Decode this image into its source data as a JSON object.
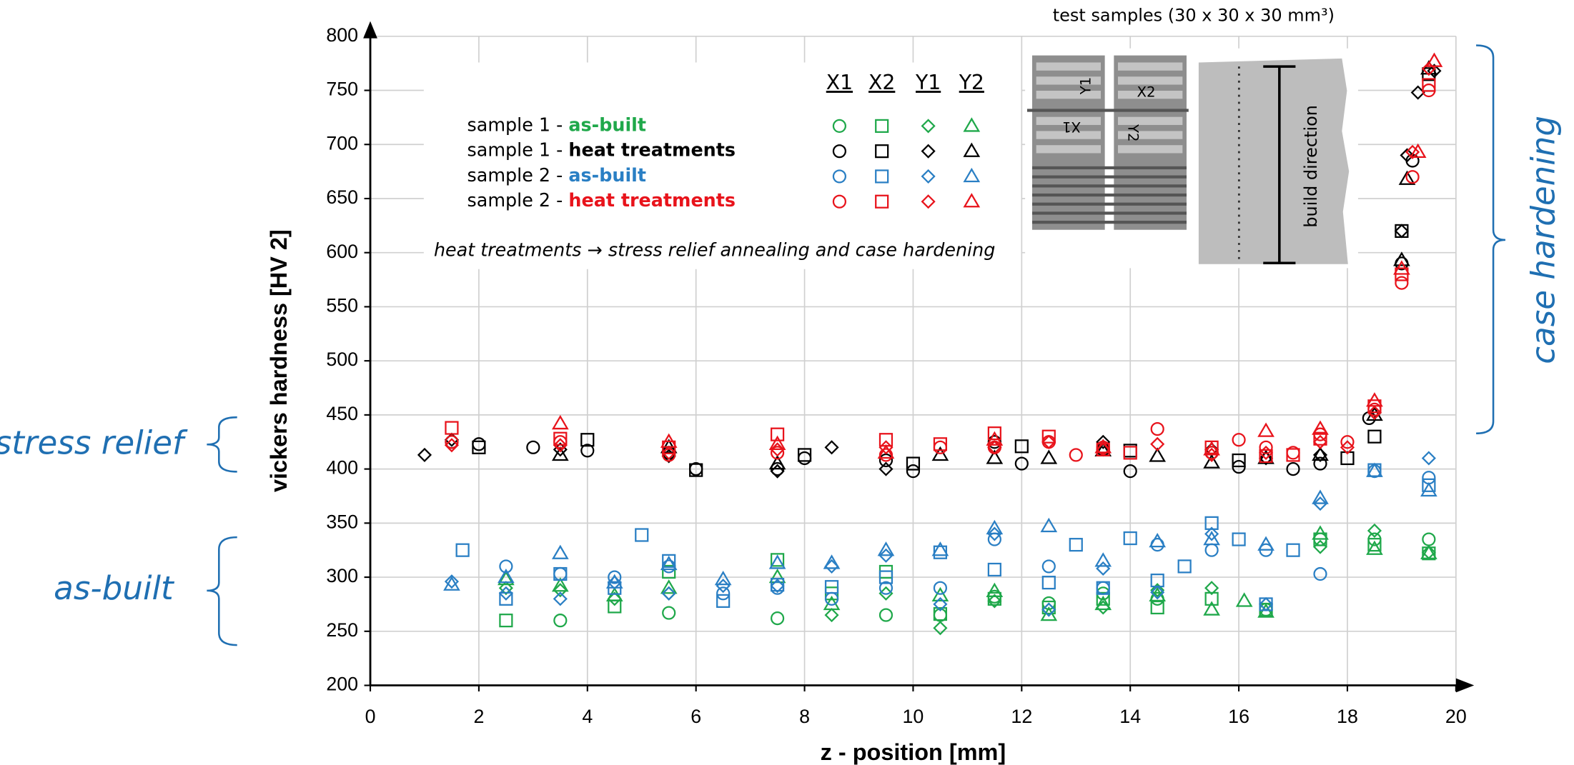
{
  "chart_data": {
    "type": "scatter",
    "x_label": "z - position [mm]",
    "y_label": "vickers hardness [HV 2]",
    "xlim": [
      0,
      20
    ],
    "xticks": [
      0,
      2,
      4,
      6,
      8,
      10,
      12,
      14,
      16,
      18,
      20
    ],
    "ylim": [
      200,
      800
    ],
    "yticks": [
      200,
      250,
      300,
      350,
      400,
      450,
      500,
      550,
      600,
      650,
      700,
      750,
      800
    ],
    "grid": true,
    "annotation": "heat treatments  → stress relief annealing and case hardening",
    "brace_labels": [
      "stress relief",
      "as-built",
      "case hardening"
    ],
    "inset": {
      "title": "test samples (30 x 30 x 30 mm³)",
      "build_direction": "build direction",
      "labels": [
        "Y1",
        "X2",
        "X1",
        "Y2"
      ]
    },
    "legend": {
      "columns": [
        {
          "label": "X1",
          "marker": "circle"
        },
        {
          "label": "X2",
          "marker": "square"
        },
        {
          "label": "Y1",
          "marker": "diamond"
        },
        {
          "label": "Y2",
          "marker": "triangle"
        }
      ],
      "rows": [
        {
          "prefix": "sample 1 - ",
          "label": "as-built",
          "color": "#1fa84a"
        },
        {
          "prefix": "sample 1 - ",
          "label": "heat treatments",
          "color": "#000000"
        },
        {
          "prefix": "sample 2 - ",
          "label": "as-built",
          "color": "#2a7fc4"
        },
        {
          "prefix": "sample 2 - ",
          "label": "heat treatments",
          "color": "#e8131b"
        }
      ]
    },
    "series": [
      {
        "color": "#1fa84a",
        "marker": "circle",
        "x": [
          3.5,
          5.5,
          7.5,
          9.5,
          10.5,
          11.5,
          12.5,
          13.5,
          14.5,
          16.5,
          17.5,
          18.5,
          19.5
        ],
        "values": [
          260,
          267,
          262,
          265,
          265,
          282,
          276,
          285,
          280,
          270,
          335,
          335,
          335
        ]
      },
      {
        "color": "#1fa84a",
        "marker": "square",
        "x": [
          2.5,
          4.5,
          5.5,
          7.5,
          8.5,
          9.5,
          10.5,
          11.5,
          12.5,
          13.5,
          14.5,
          15.5,
          16.5,
          17.5,
          18.5,
          19.5
        ],
        "values": [
          260,
          273,
          305,
          316,
          285,
          305,
          266,
          280,
          272,
          280,
          272,
          280,
          270,
          335,
          330,
          322
        ]
      },
      {
        "color": "#1fa84a",
        "marker": "diamond",
        "x": [
          2.5,
          3.5,
          4.5,
          5.5,
          8.5,
          9.5,
          10.5,
          11.5,
          12.5,
          13.5,
          14.5,
          15.5,
          17.5,
          18.5,
          19.5
        ],
        "values": [
          290,
          288,
          280,
          285,
          265,
          285,
          253,
          278,
          270,
          272,
          288,
          290,
          328,
          343,
          323
        ]
      },
      {
        "color": "#1fa84a",
        "marker": "triangle",
        "x": [
          2.5,
          3.5,
          4.5,
          5.5,
          7.5,
          8.5,
          10.5,
          11.5,
          12.5,
          13.5,
          14.5,
          15.5,
          16.1,
          16.5,
          17.5,
          18.5,
          19.5
        ],
        "values": [
          298,
          292,
          283,
          290,
          300,
          275,
          283,
          287,
          265,
          275,
          283,
          270,
          278,
          268,
          340,
          326,
          322
        ]
      },
      {
        "color": "#000000",
        "marker": "circle",
        "x": [
          1.5,
          2,
          3,
          4,
          5.5,
          6,
          7.5,
          8,
          9.5,
          10,
          11.5,
          12,
          13.5,
          14,
          15.5,
          16,
          17,
          17.5,
          18.4,
          19,
          19.2
        ],
        "values": [
          425,
          423,
          420,
          417,
          415,
          400,
          400,
          410,
          408,
          398,
          425,
          405,
          418,
          398,
          415,
          402,
          400,
          405,
          447,
          590,
          685
        ]
      },
      {
        "color": "#000000",
        "marker": "square",
        "x": [
          2,
          4,
          6,
          8,
          10,
          12,
          14,
          16,
          18,
          18.5,
          19,
          19.5
        ],
        "values": [
          420,
          427,
          399,
          413,
          405,
          421,
          417,
          408,
          410,
          430,
          620,
          765
        ]
      },
      {
        "color": "#000000",
        "marker": "diamond",
        "x": [
          1,
          1.5,
          3.5,
          5.5,
          7.5,
          8.5,
          9.5,
          11.5,
          13.5,
          15.5,
          16.5,
          17.5,
          18.5,
          19,
          19.1,
          19.3,
          19.6
        ],
        "values": [
          413,
          427,
          418,
          412,
          398,
          420,
          400,
          420,
          425,
          418,
          410,
          413,
          452,
          620,
          690,
          748,
          768
        ]
      },
      {
        "color": "#000000",
        "marker": "triangle",
        "x": [
          3.5,
          5.5,
          7.5,
          10.5,
          11.5,
          12.5,
          13.5,
          14.5,
          15.5,
          16.5,
          17.5,
          18.5,
          19,
          19.1,
          19.5
        ],
        "values": [
          413,
          420,
          405,
          413,
          410,
          410,
          417,
          412,
          406,
          410,
          413,
          450,
          593,
          668,
          770
        ]
      },
      {
        "color": "#2a7fc4",
        "marker": "circle",
        "x": [
          2.5,
          3.5,
          4.5,
          5.5,
          6.5,
          7.5,
          8.5,
          9.5,
          10.5,
          11.5,
          12.5,
          13.5,
          14.5,
          15.5,
          16.5,
          17.5,
          18.5,
          19.5
        ],
        "values": [
          310,
          303,
          300,
          310,
          285,
          290,
          280,
          290,
          290,
          335,
          310,
          290,
          330,
          325,
          325,
          303,
          398,
          392
        ]
      },
      {
        "color": "#2a7fc4",
        "marker": "square",
        "x": [
          1.7,
          2.5,
          3.5,
          4.5,
          5,
          5.5,
          6.5,
          7.5,
          8.5,
          9.5,
          10.5,
          11.5,
          12.5,
          13,
          13.5,
          14,
          14.5,
          15,
          15.5,
          16,
          16.5,
          17,
          18.5,
          19.5
        ],
        "values": [
          325,
          280,
          303,
          290,
          339,
          315,
          278,
          293,
          291,
          300,
          323,
          307,
          295,
          330,
          290,
          336,
          297,
          310,
          350,
          335,
          275,
          325,
          399,
          385
        ]
      },
      {
        "color": "#2a7fc4",
        "marker": "diamond",
        "x": [
          1.5,
          2.5,
          3.5,
          4.5,
          5.5,
          6.5,
          7.5,
          8.5,
          9.5,
          10.5,
          11.5,
          12.5,
          13.5,
          14.5,
          15.5,
          16.5,
          17.5,
          19.5
        ],
        "values": [
          296,
          285,
          280,
          295,
          285,
          292,
          292,
          310,
          320,
          275,
          340,
          270,
          308,
          286,
          340,
          275,
          368,
          410
        ]
      },
      {
        "color": "#2a7fc4",
        "marker": "triangle",
        "x": [
          1.5,
          2.5,
          3.5,
          4.5,
          5.5,
          6.5,
          7.5,
          8.5,
          9.5,
          10.5,
          11.5,
          12.5,
          13.5,
          14.5,
          15.5,
          16.5,
          17.5,
          18.5,
          19.5
        ],
        "values": [
          293,
          300,
          322,
          295,
          312,
          298,
          313,
          313,
          325,
          325,
          345,
          347,
          315,
          333,
          335,
          330,
          373,
          398,
          380
        ]
      },
      {
        "color": "#e8131b",
        "marker": "circle",
        "x": [
          1.5,
          3.5,
          5.5,
          7.5,
          9.5,
          10.5,
          11.5,
          12.5,
          13,
          13.5,
          14.5,
          15.5,
          16,
          16.5,
          17,
          17.5,
          18,
          18.5,
          19,
          19.2,
          19.5
        ],
        "values": [
          425,
          425,
          413,
          415,
          413,
          420,
          420,
          425,
          413,
          420,
          437,
          415,
          427,
          420,
          415,
          432,
          425,
          455,
          572,
          670,
          750
        ]
      },
      {
        "color": "#e8131b",
        "marker": "square",
        "x": [
          1.5,
          3.5,
          5.5,
          7.5,
          9.5,
          10.5,
          11.5,
          12.5,
          13.5,
          14,
          15.5,
          16.5,
          17,
          17.5,
          18.5,
          19,
          19.5
        ],
        "values": [
          438,
          428,
          420,
          432,
          427,
          423,
          433,
          430,
          418,
          415,
          420,
          412,
          413,
          428,
          458,
          580,
          755
        ]
      },
      {
        "color": "#e8131b",
        "marker": "diamond",
        "x": [
          1.5,
          3.5,
          5.5,
          7.5,
          9.5,
          11.5,
          12.5,
          13.5,
          14.5,
          15.5,
          16.5,
          17.5,
          18,
          18.5,
          19.2,
          19.5
        ],
        "values": [
          422,
          422,
          415,
          418,
          420,
          420,
          425,
          418,
          423,
          413,
          415,
          425,
          420,
          452,
          693,
          770
        ]
      },
      {
        "color": "#e8131b",
        "marker": "triangle",
        "x": [
          3.5,
          5.5,
          7.5,
          9.5,
          11.5,
          13.5,
          15.5,
          16.5,
          17.5,
          18.5,
          19,
          19.3,
          19.6
        ],
        "values": [
          442,
          425,
          423,
          415,
          427,
          420,
          418,
          435,
          437,
          463,
          585,
          693,
          777
        ]
      }
    ]
  }
}
